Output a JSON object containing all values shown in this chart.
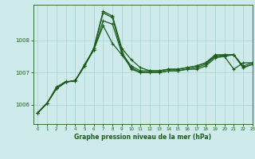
{
  "title": "Graphe pression niveau de la mer (hPa)",
  "background_color": "#ceeaea",
  "grid_color": "#b0d4d4",
  "line_color": "#1a5c1a",
  "xlim": [
    -0.5,
    23
  ],
  "ylim": [
    1005.4,
    1009.1
  ],
  "yticks": [
    1006,
    1007,
    1008
  ],
  "xticks": [
    0,
    1,
    2,
    3,
    4,
    5,
    6,
    7,
    8,
    9,
    10,
    11,
    12,
    13,
    14,
    15,
    16,
    17,
    18,
    19,
    20,
    21,
    22,
    23
  ],
  "figsize": [
    3.2,
    2.0
  ],
  "dpi": 100,
  "series": [
    [
      1005.75,
      1006.05,
      1006.5,
      1006.7,
      1006.75,
      1007.2,
      1007.75,
      1008.9,
      1008.75,
      1007.75,
      1007.4,
      1007.15,
      1007.05,
      1007.05,
      1007.1,
      1007.1,
      1007.15,
      1007.2,
      1007.3,
      1007.55,
      1007.55,
      1007.55,
      1007.15,
      1007.25
    ],
    [
      1005.75,
      1006.05,
      1006.5,
      1006.7,
      1006.75,
      1007.2,
      1007.75,
      1008.85,
      1008.7,
      1007.65,
      1007.1,
      1007.0,
      1007.0,
      1007.0,
      1007.05,
      1007.05,
      1007.1,
      1007.1,
      1007.2,
      1007.45,
      1007.5,
      1007.1,
      1007.3,
      1007.3
    ],
    [
      1005.75,
      1006.05,
      1006.5,
      1006.7,
      1006.75,
      1007.2,
      1007.7,
      1008.45,
      1007.9,
      1007.55,
      1007.15,
      1007.0,
      1007.0,
      1007.0,
      1007.05,
      1007.05,
      1007.1,
      1007.15,
      1007.25,
      1007.5,
      1007.5,
      1007.55,
      1007.15,
      1007.25
    ],
    [
      1005.75,
      1006.05,
      1006.55,
      1006.72,
      1006.72,
      1007.25,
      1007.7,
      1008.6,
      1008.5,
      1007.6,
      1007.2,
      1007.05,
      1007.05,
      1007.05,
      1007.1,
      1007.1,
      1007.15,
      1007.2,
      1007.3,
      1007.5,
      1007.55,
      1007.55,
      1007.2,
      1007.3
    ]
  ]
}
